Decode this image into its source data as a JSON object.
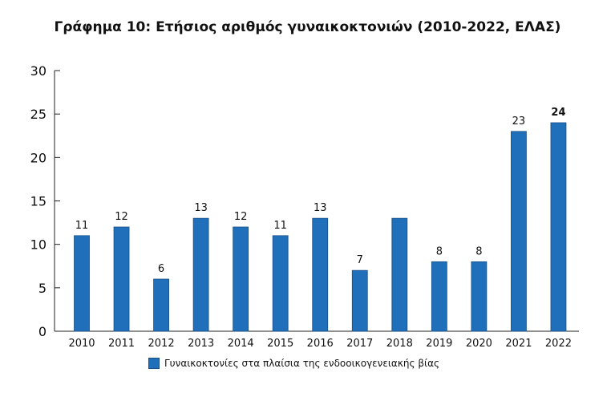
{
  "chart_data": {
    "type": "bar",
    "title": "Γράφημα 10: Ετήσιος αριθμός γυναικοκτονιών (2010-2022, ΕΛΑΣ)",
    "categories": [
      "2010",
      "2011",
      "2012",
      "2013",
      "2014",
      "2015",
      "2016",
      "2017",
      "2018",
      "2019",
      "2020",
      "2021",
      "2022"
    ],
    "series": [
      {
        "name": "Γυναικοκτονίες στα πλαίσια της ενδοοικογενειακής βίας",
        "values": [
          11,
          12,
          6,
          13,
          12,
          11,
          13,
          7,
          13,
          8,
          8,
          23,
          24
        ],
        "data_labels": [
          "11",
          "12",
          "6",
          "13",
          "12",
          "11",
          "13",
          "7",
          "",
          "8",
          "8",
          "23",
          "24"
        ],
        "color": "#1f6fba"
      }
    ],
    "y_ticks": [
      "0",
      "5",
      "10",
      "15",
      "20",
      "25",
      "30"
    ],
    "ylim": [
      0,
      30
    ],
    "xlabel": "",
    "ylabel": "",
    "grid": false,
    "legend": "bottom"
  }
}
